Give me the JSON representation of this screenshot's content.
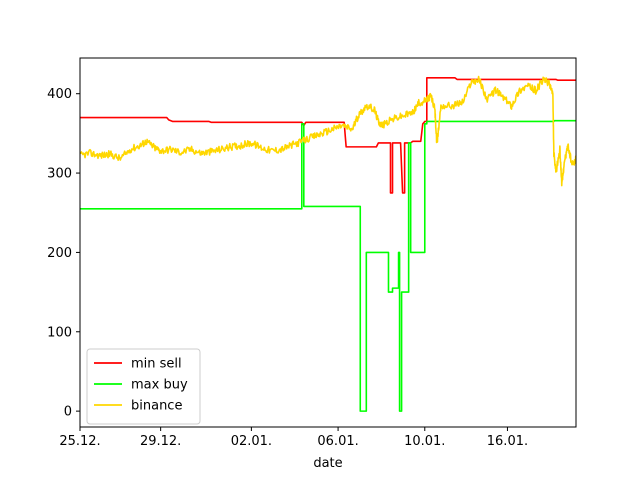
{
  "chart_data": {
    "type": "line",
    "title": "",
    "xlabel": "date",
    "ylabel": "",
    "xlim": [
      0,
      24.6
    ],
    "ylim": [
      -20,
      445
    ],
    "x_unit": "days from 25.12. (tick labels show dates)",
    "x_ticks": [
      {
        "pos": 0,
        "label": "25.12."
      },
      {
        "pos": 4,
        "label": "29.12."
      },
      {
        "pos": 8.5,
        "label": "02.01."
      },
      {
        "pos": 12.8,
        "label": "06.01."
      },
      {
        "pos": 17.1,
        "label": "10.01."
      },
      {
        "pos": 21.2,
        "label": "16.01."
      }
    ],
    "y_ticks": [
      0,
      100,
      200,
      300,
      400
    ],
    "grid": false,
    "legend": {
      "placement": "lower-left"
    },
    "series": [
      {
        "name": "min sell",
        "color": "#ff0000",
        "style": "step",
        "points": [
          [
            0,
            370
          ],
          [
            4.3,
            370
          ],
          [
            4.4,
            367
          ],
          [
            4.6,
            365
          ],
          [
            6.4,
            365
          ],
          [
            6.5,
            364
          ],
          [
            11.0,
            364
          ],
          [
            11.1,
            360
          ],
          [
            11.2,
            364
          ],
          [
            13.1,
            364
          ],
          [
            13.2,
            333
          ],
          [
            14.7,
            333
          ],
          [
            14.8,
            338
          ],
          [
            15.4,
            338
          ],
          [
            15.4,
            275
          ],
          [
            15.5,
            275
          ],
          [
            15.5,
            338
          ],
          [
            15.9,
            338
          ],
          [
            16.0,
            275
          ],
          [
            16.1,
            275
          ],
          [
            16.1,
            338
          ],
          [
            16.4,
            338
          ],
          [
            16.5,
            340
          ],
          [
            16.9,
            340
          ],
          [
            17.0,
            362
          ],
          [
            17.1,
            365
          ],
          [
            17.2,
            365
          ],
          [
            17.2,
            420
          ],
          [
            18.6,
            420
          ],
          [
            18.7,
            418
          ],
          [
            23.6,
            418
          ],
          [
            23.7,
            417
          ],
          [
            24.6,
            417
          ]
        ]
      },
      {
        "name": "max buy",
        "color": "#00ff00",
        "style": "step",
        "points": [
          [
            0,
            255
          ],
          [
            11.0,
            255
          ],
          [
            11.0,
            362
          ],
          [
            11.1,
            362
          ],
          [
            11.1,
            258
          ],
          [
            13.9,
            258
          ],
          [
            13.9,
            0
          ],
          [
            14.2,
            0
          ],
          [
            14.2,
            200
          ],
          [
            15.3,
            200
          ],
          [
            15.3,
            150
          ],
          [
            15.5,
            150
          ],
          [
            15.5,
            155
          ],
          [
            15.8,
            155
          ],
          [
            15.8,
            200
          ],
          [
            15.85,
            200
          ],
          [
            15.85,
            0
          ],
          [
            15.95,
            0
          ],
          [
            15.95,
            150
          ],
          [
            16.3,
            150
          ],
          [
            16.3,
            338
          ],
          [
            16.4,
            338
          ],
          [
            16.4,
            200
          ],
          [
            17.1,
            200
          ],
          [
            17.1,
            362
          ],
          [
            17.2,
            362
          ],
          [
            17.2,
            365
          ],
          [
            23.5,
            365
          ],
          [
            23.5,
            366
          ],
          [
            24.6,
            366
          ]
        ]
      },
      {
        "name": "binance",
        "color": "#ffd700",
        "style": "noisy",
        "points": [
          [
            0,
            322
          ],
          [
            0.5,
            325
          ],
          [
            1.0,
            322
          ],
          [
            1.5,
            324
          ],
          [
            2.0,
            318
          ],
          [
            2.5,
            330
          ],
          [
            3.0,
            335
          ],
          [
            3.3,
            340
          ],
          [
            3.7,
            332
          ],
          [
            4.0,
            328
          ],
          [
            4.5,
            330
          ],
          [
            5.0,
            326
          ],
          [
            5.5,
            330
          ],
          [
            6.0,
            325
          ],
          [
            6.5,
            327
          ],
          [
            7.0,
            330
          ],
          [
            7.5,
            333
          ],
          [
            8.0,
            335
          ],
          [
            8.5,
            338
          ],
          [
            9.0,
            332
          ],
          [
            9.5,
            328
          ],
          [
            10.0,
            330
          ],
          [
            10.5,
            335
          ],
          [
            11.0,
            340
          ],
          [
            11.5,
            345
          ],
          [
            12.0,
            350
          ],
          [
            12.5,
            355
          ],
          [
            13.0,
            360
          ],
          [
            13.5,
            355
          ],
          [
            13.8,
            372
          ],
          [
            14.2,
            385
          ],
          [
            14.6,
            380
          ],
          [
            14.8,
            365
          ],
          [
            15.0,
            360
          ],
          [
            15.5,
            368
          ],
          [
            16.0,
            372
          ],
          [
            16.5,
            376
          ],
          [
            16.8,
            388
          ],
          [
            17.2,
            392
          ],
          [
            17.4,
            398
          ],
          [
            17.6,
            380
          ],
          [
            17.7,
            335
          ],
          [
            17.9,
            385
          ],
          [
            18.5,
            385
          ],
          [
            19.0,
            390
          ],
          [
            19.4,
            415
          ],
          [
            19.8,
            418
          ],
          [
            20.2,
            392
          ],
          [
            20.6,
            405
          ],
          [
            21.0,
            395
          ],
          [
            21.4,
            385
          ],
          [
            21.8,
            404
          ],
          [
            22.2,
            410
          ],
          [
            22.6,
            404
          ],
          [
            23.0,
            418
          ],
          [
            23.3,
            412
          ],
          [
            23.45,
            400
          ],
          [
            23.5,
            325
          ],
          [
            23.6,
            300
          ],
          [
            23.8,
            330
          ],
          [
            23.9,
            285
          ],
          [
            24.0,
            310
          ],
          [
            24.2,
            335
          ],
          [
            24.4,
            310
          ],
          [
            24.6,
            318
          ]
        ]
      }
    ]
  }
}
